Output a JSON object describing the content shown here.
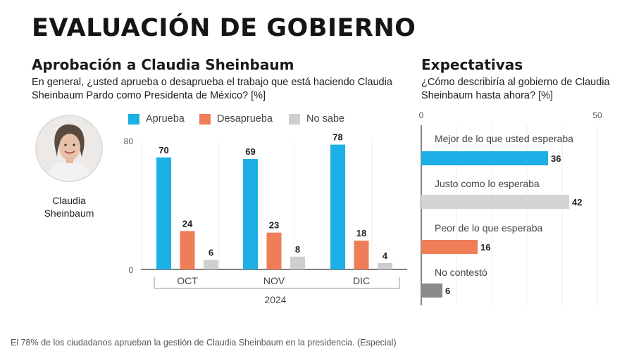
{
  "page": {
    "title": "EVALUACIÓN DE GOBIERNO",
    "caption": "El 78% de los ciudadanos aprueban la gestión de Claudia Sheinbaum en la presidencia. (Especial)"
  },
  "person": {
    "name": "Claudia Sheinbaum"
  },
  "colors": {
    "aprueba": "#1cb0e6",
    "desaprueba": "#ef7d57",
    "nosabe": "#cfcfcf",
    "right_gray": "#d4d4d4",
    "right_dark": "#8a8a8a"
  },
  "chart_data": [
    {
      "type": "bar",
      "title": "Aprobación a Claudia Sheinbaum",
      "subtitle": "En general, ¿usted aprueba o desaprueba el trabajo que está haciendo Claudia Sheinbaum Pardo como Presidenta de México? [%]",
      "categories": [
        "OCT",
        "NOV",
        "DIC"
      ],
      "xlabel": "2024",
      "ylim": [
        0,
        80
      ],
      "yticks": [
        "0",
        "80"
      ],
      "legend": "top",
      "series": [
        {
          "name": "Aprueba",
          "values": [
            70,
            69,
            78
          ],
          "color": "#1cb0e6"
        },
        {
          "name": "Desaprueba",
          "values": [
            24,
            23,
            18
          ],
          "color": "#ef7d57"
        },
        {
          "name": "No sabe",
          "values": [
            6,
            8,
            4
          ],
          "color": "#cfcfcf"
        }
      ]
    },
    {
      "type": "bar",
      "orientation": "horizontal",
      "title": "Expectativas",
      "subtitle": "¿Cómo describiría al gobierno de Claudia Sheinbaum hasta ahora? [%]",
      "xlim": [
        0,
        50
      ],
      "xticks": [
        "0",
        "50"
      ],
      "categories": [
        "Mejor de lo que usted esperaba",
        "Justo como lo esperaba",
        "Peor de lo que esperaba",
        "No contestó"
      ],
      "values": [
        36,
        42,
        16,
        6
      ],
      "colors": [
        "#1cb0e6",
        "#d4d4d4",
        "#ef7d57",
        "#8a8a8a"
      ]
    }
  ]
}
